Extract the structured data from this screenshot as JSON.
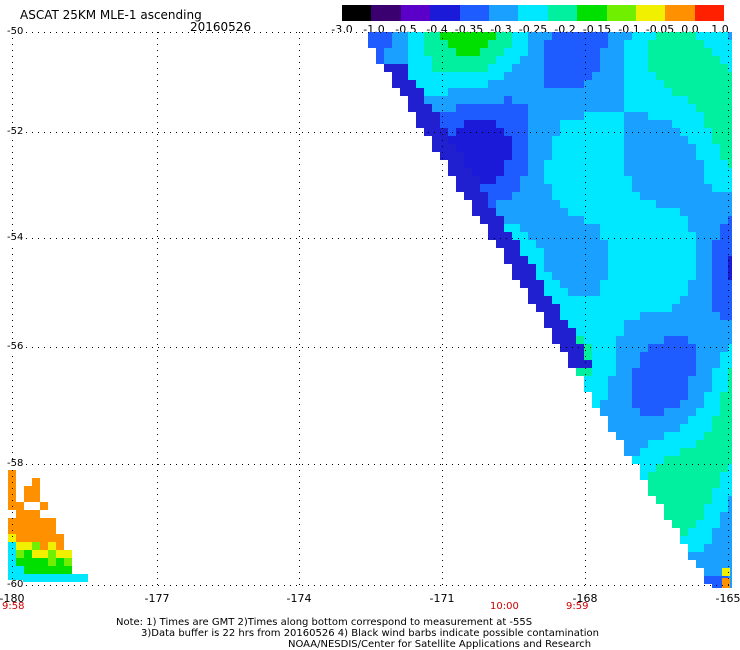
{
  "header": {
    "product_title": "ASCAT 25KM MLE-1 ascending",
    "date": "20160526"
  },
  "colorbar": {
    "labels": [
      "-3.0",
      "-1.0",
      "-0.5",
      "-0.4",
      "-0.35",
      "-0.3",
      "-0.25",
      "-0.2",
      "-0.15",
      "-0.1",
      "-0.05",
      "0.0",
      "1.0"
    ],
    "colors": [
      "#000000",
      "#3a0070",
      "#5a00c8",
      "#1a1ad8",
      "#1e5cff",
      "#1aa0ff",
      "#00e8ff",
      "#00f0a0",
      "#00e000",
      "#70f000",
      "#f0f000",
      "#ff9000",
      "#ff2000"
    ]
  },
  "map": {
    "lon_ticks": [
      "-180",
      "-177",
      "-174",
      "-171",
      "-168",
      "-165"
    ],
    "lat_ticks": [
      "-50",
      "-52",
      "-54",
      "-56",
      "-58",
      "-60"
    ],
    "time_labels": [
      "9:58",
      "10:00",
      "9:59"
    ],
    "lon_range": [
      -180,
      -165
    ],
    "lat_range": [
      -60,
      -50
    ]
  },
  "notes": {
    "line1": "Note: 1) Times are GMT 2)Times along bottom correspond to measurement at -55S",
    "line2": "3)Data buffer is 22 hrs from 20160526 4) Black wind barbs indicate possible contamination",
    "line3": "NOAA/NESDIS/Center for Satellite Applications and Research"
  }
}
